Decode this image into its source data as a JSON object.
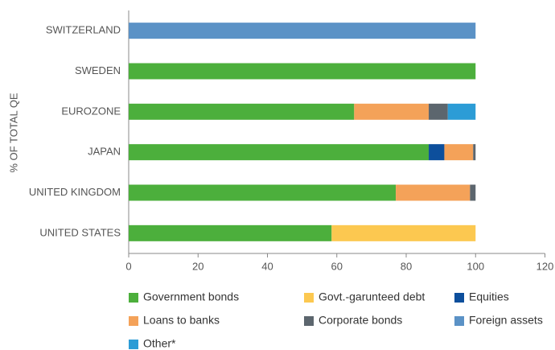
{
  "chart_data": {
    "type": "stacked-bar-horizontal",
    "y_label": "% OF TOTAL QE",
    "categories": [
      "SWITZERLAND",
      "SWEDEN",
      "EUROZONE",
      "JAPAN",
      "UNITED KINGDOM",
      "UNITED STATES"
    ],
    "series": [
      {
        "name": "Government bonds",
        "color": "#4caf3c",
        "values": [
          null,
          100,
          65,
          86.5,
          77,
          58.5
        ]
      },
      {
        "name": "Govt.-garunteed debt",
        "color": "#fcc850",
        "values": [
          null,
          null,
          null,
          null,
          null,
          41.5
        ]
      },
      {
        "name": "Equities",
        "color": "#0d4f9c",
        "values": [
          null,
          null,
          null,
          4.5,
          null,
          null
        ]
      },
      {
        "name": "Loans to banks",
        "color": "#f4a259",
        "values": [
          null,
          null,
          21.5,
          8.3,
          21.4,
          null
        ]
      },
      {
        "name": "Corporate bonds",
        "color": "#5c666e",
        "values": [
          null,
          null,
          5.5,
          0.7,
          1.6,
          null
        ]
      },
      {
        "name": "Foreign assets",
        "color": "#5b92c6",
        "values": [
          100,
          null,
          null,
          null,
          null,
          null
        ]
      },
      {
        "name": "Other*",
        "color": "#2c9cd6",
        "values": [
          null,
          null,
          8,
          null,
          null,
          null
        ]
      }
    ],
    "xlim": [
      0,
      120
    ],
    "xticks": [
      0,
      20,
      40,
      60,
      80,
      100,
      120
    ]
  }
}
